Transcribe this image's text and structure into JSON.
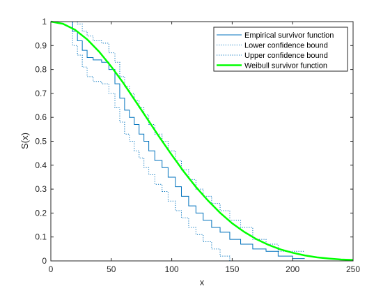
{
  "chart_data": {
    "type": "line",
    "title": "",
    "xlabel": "x",
    "ylabel": "S(x)",
    "xlim": [
      0,
      250
    ],
    "ylim": [
      0,
      1
    ],
    "xticks": [
      "0",
      "50",
      "100",
      "150",
      "200",
      "250"
    ],
    "yticks": [
      "0",
      "0.1",
      "0.2",
      "0.3",
      "0.4",
      "0.5",
      "0.6",
      "0.7",
      "0.8",
      "0.9",
      "1"
    ],
    "grid": false,
    "legend_position": "top-right",
    "series": [
      {
        "name": "Empirical survivor function",
        "style": "step",
        "color": "#0072BD",
        "x": [
          0,
          18,
          22,
          26,
          30,
          35,
          42,
          48,
          53,
          57,
          61,
          65,
          69,
          73,
          77,
          81,
          86,
          92,
          97,
          103,
          108,
          114,
          120,
          126,
          133,
          140,
          148,
          157,
          167,
          178,
          188,
          200,
          210
        ],
        "y": [
          1,
          0.96,
          0.92,
          0.88,
          0.85,
          0.84,
          0.83,
          0.8,
          0.74,
          0.68,
          0.63,
          0.6,
          0.57,
          0.53,
          0.5,
          0.46,
          0.42,
          0.39,
          0.35,
          0.31,
          0.27,
          0.23,
          0.2,
          0.17,
          0.14,
          0.12,
          0.09,
          0.07,
          0.05,
          0.04,
          0.02,
          0.01,
          0.01
        ]
      },
      {
        "name": "Lower confidence bound",
        "style": "step-dotted",
        "color": "#0072BD",
        "x": [
          0,
          18,
          22,
          26,
          30,
          35,
          42,
          48,
          53,
          57,
          61,
          65,
          69,
          73,
          77,
          81,
          86,
          92,
          97,
          103,
          108,
          114,
          120,
          126,
          133,
          140,
          148,
          155
        ],
        "y": [
          1,
          0.9,
          0.86,
          0.81,
          0.77,
          0.75,
          0.74,
          0.7,
          0.64,
          0.58,
          0.53,
          0.5,
          0.46,
          0.43,
          0.39,
          0.36,
          0.32,
          0.29,
          0.25,
          0.21,
          0.18,
          0.14,
          0.11,
          0.08,
          0.05,
          0.02,
          0.0,
          0.0
        ]
      },
      {
        "name": "Upper confidence bound",
        "style": "step-dotted",
        "color": "#0072BD",
        "x": [
          0,
          18,
          22,
          26,
          30,
          35,
          42,
          48,
          53,
          57,
          61,
          65,
          69,
          73,
          77,
          81,
          86,
          92,
          97,
          103,
          108,
          114,
          120,
          126,
          133,
          140,
          148,
          157,
          167,
          178,
          188,
          200,
          210
        ],
        "y": [
          1,
          1,
          0.99,
          0.96,
          0.94,
          0.92,
          0.91,
          0.87,
          0.83,
          0.77,
          0.73,
          0.7,
          0.67,
          0.64,
          0.61,
          0.57,
          0.53,
          0.5,
          0.46,
          0.42,
          0.38,
          0.34,
          0.3,
          0.27,
          0.24,
          0.21,
          0.17,
          0.14,
          0.09,
          0.07,
          0.04,
          0.04,
          0.04
        ]
      },
      {
        "name": "Weibull survivor function",
        "style": "smooth",
        "color": "#00FF00",
        "x": [
          0,
          10,
          20,
          30,
          40,
          50,
          60,
          70,
          80,
          90,
          100,
          110,
          120,
          130,
          140,
          150,
          160,
          170,
          180,
          190,
          200,
          210,
          220,
          230,
          240,
          250
        ],
        "y": [
          1.0,
          0.991,
          0.966,
          0.926,
          0.874,
          0.812,
          0.743,
          0.668,
          0.592,
          0.516,
          0.443,
          0.373,
          0.309,
          0.252,
          0.201,
          0.157,
          0.121,
          0.091,
          0.067,
          0.048,
          0.034,
          0.023,
          0.015,
          0.01,
          0.006,
          0.004
        ]
      }
    ]
  }
}
